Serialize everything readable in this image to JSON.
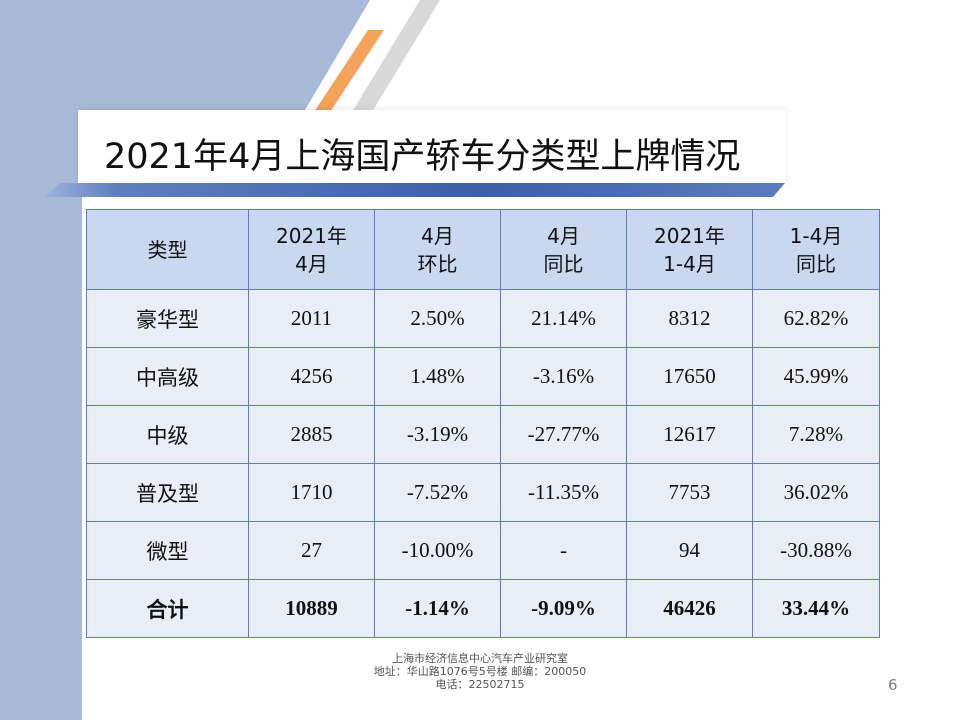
{
  "title": "2021年4月上海国产轿车分类型上牌情况",
  "colors": {
    "accent": "#3d5fa8",
    "panel": "#a9b9d8",
    "orange": "#f5a25a",
    "header_fill": "#c9d8ef",
    "cell_fill": "#e8edf6"
  },
  "table": {
    "headers": [
      [
        "类型"
      ],
      [
        "2021年",
        "4月"
      ],
      [
        "4月",
        "环比"
      ],
      [
        "4月",
        "同比"
      ],
      [
        "2021年",
        "1-4月"
      ],
      [
        "1-4月",
        "同比"
      ]
    ],
    "rows": [
      [
        "豪华型",
        "2011",
        "2.50%",
        "21.14%",
        "8312",
        "62.82%"
      ],
      [
        "中高级",
        "4256",
        "1.48%",
        "-3.16%",
        "17650",
        "45.99%"
      ],
      [
        "中级",
        "2885",
        "-3.19%",
        "-27.77%",
        "12617",
        "7.28%"
      ],
      [
        "普及型",
        "1710",
        "-7.52%",
        "-11.35%",
        "7753",
        "36.02%"
      ],
      [
        "微型",
        "27",
        "-10.00%",
        "-",
        "94",
        "-30.88%"
      ],
      [
        "合计",
        "10889",
        "-1.14%",
        "-9.09%",
        "46426",
        "33.44%"
      ]
    ]
  },
  "footer": {
    "line1": "上海市经济信息中心汽车产业研究室",
    "line2": "地址：华山路1076号5号楼    邮编：200050",
    "line3": "电话：22502715"
  },
  "page_number": "6"
}
